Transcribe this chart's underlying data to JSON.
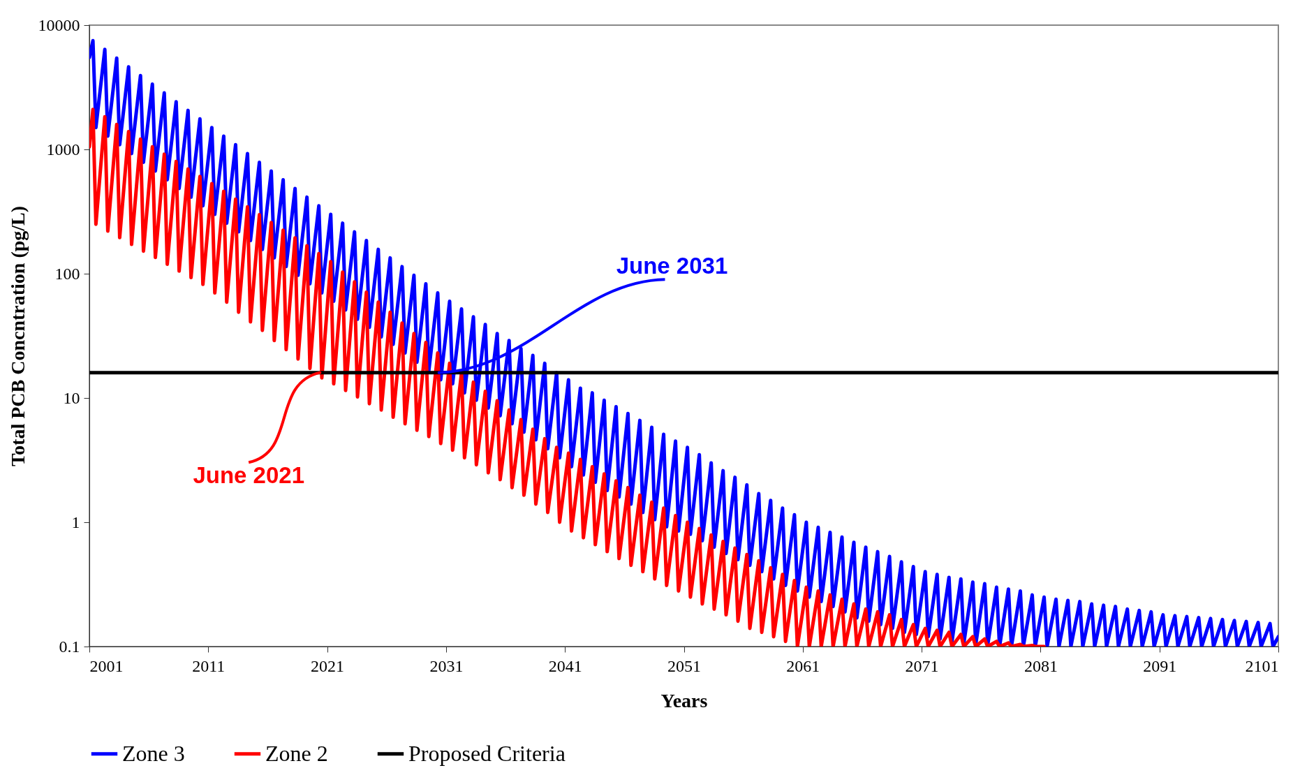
{
  "chart_data": {
    "type": "line",
    "xlabel": "Years",
    "ylabel": "Total PCB Concntration (pg/L)",
    "log": "y",
    "xlim": [
      2001,
      2101
    ],
    "xticks": [
      2001,
      2011,
      2021,
      2031,
      2041,
      2051,
      2061,
      2071,
      2081,
      2091,
      2101
    ],
    "ylim": [
      0.1,
      10000
    ],
    "yticks": [
      0.1,
      1,
      10,
      100,
      1000,
      10000
    ],
    "legend": "bottom",
    "line_style": "solid",
    "marker": "none",
    "x": [
      2001,
      2001.3,
      2001.55,
      2002.3,
      2002.55,
      2003.3,
      2003.55,
      2004.3,
      2004.55,
      2005.3,
      2005.55,
      2006.3,
      2006.55,
      2007.3,
      2007.55,
      2008.3,
      2008.55,
      2009.3,
      2009.55,
      2010.3,
      2010.55,
      2011.3,
      2011.55,
      2012.3,
      2012.55,
      2013.3,
      2013.55,
      2014.3,
      2014.55,
      2015.3,
      2015.55,
      2016.3,
      2016.55,
      2017.3,
      2017.55,
      2018.3,
      2018.55,
      2019.3,
      2019.55,
      2020.3,
      2020.55,
      2021.3,
      2021.55,
      2022.3,
      2022.55,
      2023.3,
      2023.55,
      2024.3,
      2024.55,
      2025.3,
      2025.55,
      2026.3,
      2026.55,
      2027.3,
      2027.55,
      2028.3,
      2028.55,
      2029.3,
      2029.55,
      2030.3,
      2030.55,
      2031.3,
      2031.55,
      2032.3,
      2032.55,
      2033.3,
      2033.55,
      2034.3,
      2034.55,
      2035.3,
      2035.55,
      2036.3,
      2036.55,
      2037.3,
      2037.55,
      2038.3,
      2038.55,
      2039.3,
      2039.55,
      2040.3,
      2040.55,
      2041.3,
      2041.55,
      2042.3,
      2042.55,
      2043.3,
      2043.55,
      2044.3,
      2044.55,
      2045.3,
      2045.55,
      2046.3,
      2046.55,
      2047.3,
      2047.55,
      2048.3,
      2048.55,
      2049.3,
      2049.55,
      2050.3,
      2050.55,
      2051.3,
      2051.55,
      2052.3,
      2052.55,
      2053.3,
      2053.55,
      2054.3,
      2054.55,
      2055.3,
      2055.55,
      2056.3,
      2056.55,
      2057.3,
      2057.55,
      2058.3,
      2058.55,
      2059.3,
      2059.55,
      2060.3,
      2060.55,
      2061.3,
      2061.55,
      2062.3,
      2062.55,
      2063.3,
      2063.55,
      2064.3,
      2064.55,
      2065.3,
      2065.55,
      2066.3,
      2066.55,
      2067.3,
      2067.55,
      2068.3,
      2068.55,
      2069.3,
      2069.55,
      2070.3,
      2070.55,
      2071.3,
      2071.55,
      2072.3,
      2072.55,
      2073.3,
      2073.55,
      2074.3,
      2074.55,
      2075.3,
      2075.55,
      2076.3,
      2076.55,
      2077.3,
      2077.55,
      2078.3,
      2078.55,
      2079.3,
      2079.55,
      2080.3,
      2080.55,
      2081.3,
      2081.55,
      2082.3,
      2082.55,
      2083.3,
      2083.55,
      2084.3,
      2084.55,
      2085.3,
      2085.55,
      2086.3,
      2086.55,
      2087.3,
      2087.55,
      2088.3,
      2088.55,
      2089.3,
      2089.55,
      2090.3,
      2090.55,
      2091.3,
      2091.55,
      2092.3,
      2092.55,
      2093.3,
      2093.55,
      2094.3,
      2094.55,
      2095.3,
      2095.55,
      2096.3,
      2096.55,
      2097.3,
      2097.55,
      2098.3,
      2098.55,
      2099.3,
      2099.55,
      2100.3,
      2100.55,
      2101
    ],
    "series": [
      {
        "name": "Zone 3",
        "color": "#0000ff",
        "values": [
          5500,
          7500,
          1500,
          6380,
          1280,
          5430,
          1090,
          4620,
          925,
          3930,
          787,
          3350,
          670,
          2850,
          570,
          2420,
          485,
          2060,
          413,
          1760,
          352,
          1500,
          300,
          1280,
          255,
          1090,
          217,
          925,
          185,
          787,
          157,
          670,
          134,
          570,
          114,
          485,
          97,
          413,
          83,
          352,
          70,
          300,
          60,
          255,
          51,
          217,
          43,
          185,
          37,
          157,
          31,
          134,
          27,
          114,
          23,
          97,
          19.4,
          83,
          16.5,
          70,
          14,
          60,
          13,
          52,
          11,
          45,
          9.6,
          39,
          8.3,
          33,
          7.2,
          29,
          6.2,
          25,
          5.3,
          22,
          4.6,
          19,
          3.9,
          16,
          3.3,
          14,
          2.8,
          12,
          2.4,
          11,
          2.1,
          9.6,
          1.8,
          8.5,
          1.6,
          7.5,
          1.4,
          6.6,
          1.2,
          5.8,
          1.05,
          5.1,
          0.92,
          4.5,
          0.85,
          4,
          0.8,
          3.5,
          0.71,
          3,
          0.63,
          2.6,
          0.56,
          2.3,
          0.5,
          2,
          0.45,
          1.7,
          0.4,
          1.5,
          0.35,
          1.3,
          0.31,
          1.15,
          0.28,
          1,
          0.25,
          0.91,
          0.23,
          0.83,
          0.21,
          0.76,
          0.19,
          0.69,
          0.17,
          0.63,
          0.16,
          0.58,
          0.15,
          0.53,
          0.14,
          0.48,
          0.13,
          0.44,
          0.125,
          0.4,
          0.12,
          0.38,
          0.115,
          0.36,
          0.11,
          0.35,
          0.107,
          0.33,
          0.104,
          0.32,
          0.102,
          0.3,
          0.1,
          0.29,
          0.1,
          0.28,
          0.1,
          0.26,
          0.1,
          0.25,
          0.1,
          0.24,
          0.1,
          0.235,
          0.1,
          0.23,
          0.1,
          0.22,
          0.1,
          0.215,
          0.1,
          0.21,
          0.1,
          0.2,
          0.1,
          0.195,
          0.1,
          0.19,
          0.1,
          0.18,
          0.1,
          0.177,
          0.1,
          0.174,
          0.1,
          0.171,
          0.1,
          0.168,
          0.1,
          0.165,
          0.1,
          0.162,
          0.1,
          0.159,
          0.1,
          0.156,
          0.1,
          0.153,
          0.1,
          0.12
        ]
      },
      {
        "name": "Zone 2",
        "color": "#ff0000",
        "values": [
          1050,
          2100,
          250,
          1830,
          220,
          1590,
          195,
          1390,
          172,
          1210,
          152,
          1050,
          135,
          915,
          119,
          800,
          105,
          695,
          93,
          605,
          82,
          530,
          70,
          460,
          59,
          398,
          49,
          345,
          41,
          298,
          35,
          258,
          29,
          224,
          24.5,
          194,
          20.6,
          168,
          17.3,
          145,
          14.5,
          125,
          13,
          103,
          11.5,
          86,
          10.2,
          71,
          9,
          59,
          8,
          49,
          7,
          40,
          6.2,
          33,
          5.5,
          28,
          4.9,
          23,
          4.3,
          19,
          3.8,
          16,
          3.3,
          13.4,
          2.9,
          11.3,
          2.5,
          9.5,
          2.2,
          8,
          1.9,
          6.7,
          1.65,
          5.6,
          1.4,
          4.7,
          1.2,
          4,
          1,
          3.6,
          0.85,
          3.2,
          0.75,
          2.8,
          0.66,
          2.45,
          0.58,
          2.15,
          0.51,
          1.9,
          0.45,
          1.65,
          0.4,
          1.45,
          0.35,
          1.3,
          0.31,
          1.13,
          0.28,
          1,
          0.25,
          0.89,
          0.22,
          0.79,
          0.2,
          0.7,
          0.18,
          0.62,
          0.16,
          0.55,
          0.14,
          0.49,
          0.13,
          0.43,
          0.12,
          0.38,
          0.11,
          0.34,
          0.1,
          0.3,
          0.1,
          0.28,
          0.1,
          0.26,
          0.1,
          0.24,
          0.1,
          0.22,
          0.1,
          0.2,
          0.1,
          0.19,
          0.1,
          0.18,
          0.1,
          0.165,
          0.1,
          0.15,
          0.1,
          0.14,
          0.1,
          0.135,
          0.1,
          0.13,
          0.1,
          0.125,
          0.1,
          0.12,
          0.1,
          0.115,
          0.1,
          0.11,
          0.1,
          0.107,
          0.1,
          0.104,
          0.1,
          0.102,
          0.1,
          0.1,
          null,
          null,
          null,
          null,
          null,
          null,
          null,
          null,
          null,
          null,
          null,
          null,
          null,
          null,
          null,
          null,
          null,
          null,
          null,
          null,
          null,
          null,
          null,
          null,
          null,
          null,
          null,
          null,
          null,
          null,
          null,
          null,
          null,
          null,
          null,
          null,
          null,
          null,
          null,
          null
        ]
      },
      {
        "name": "Proposed Criteria",
        "color": "#000000",
        "x": [
          2001,
          2101
        ],
        "values": [
          16,
          16
        ]
      }
    ],
    "annotations": [
      {
        "text": "June 2031",
        "x": 2030.4,
        "y": 16
      },
      {
        "text": "June 2021",
        "x": 2020.4,
        "y": 16
      }
    ]
  }
}
